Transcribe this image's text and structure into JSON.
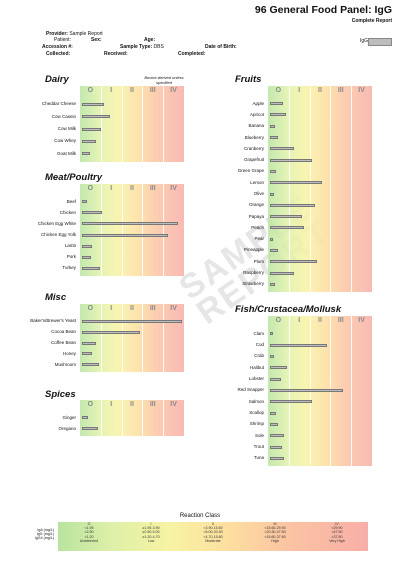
{
  "header": {
    "title": "96 General Food Panel: IgG",
    "subtitle": "Complete Report",
    "provider_label": "Provider:",
    "provider_value": "Sample Report",
    "patient_label": "Patient:",
    "sex_label": "Sex:",
    "age_label": "Age:",
    "accession_label": "Accession #:",
    "sample_type_label": "Sample Type:",
    "sample_type_value": "DBS",
    "dob_label": "Date of Birth:",
    "collected_label": "Collected:",
    "received_label": "Received:",
    "completed_label": "Completed:",
    "legend_label": "IgG"
  },
  "class_headers": [
    "O",
    "I",
    "II",
    "III",
    "IV"
  ],
  "watermark": "SAMPLE REPORT",
  "sections": {
    "dairy": {
      "title": "Dairy",
      "note": "Bovine-derived unless specified",
      "items": [
        {
          "label": "Cheddar Cheese",
          "level": 0.22
        },
        {
          "label": "Cow Casein",
          "level": 0.28
        },
        {
          "label": "Cow Milk",
          "level": 0.19
        },
        {
          "label": "Cow Whey",
          "level": 0.14
        },
        {
          "label": "Goat Milk",
          "level": 0.08
        }
      ]
    },
    "meat": {
      "title": "Meat/Poultry",
      "items": [
        {
          "label": "Beef",
          "level": 0.05
        },
        {
          "label": "Chicken",
          "level": 0.2
        },
        {
          "label": "Chicken Egg White",
          "level": 0.96
        },
        {
          "label": "Chicken Egg Yolk",
          "level": 0.86
        },
        {
          "label": "Lamb",
          "level": 0.1
        },
        {
          "label": "Pork",
          "level": 0.09
        },
        {
          "label": "Turkey",
          "level": 0.18
        }
      ]
    },
    "misc": {
      "title": "Misc",
      "items": [
        {
          "label": "Baker's/Brewer's Yeast",
          "level": 1.0
        },
        {
          "label": "Cocoa Bean",
          "level": 0.58
        },
        {
          "label": "Coffee Bean",
          "level": 0.14
        },
        {
          "label": "Honey",
          "level": 0.1
        },
        {
          "label": "Mushroom",
          "level": 0.17
        }
      ]
    },
    "spices": {
      "title": "Spices",
      "items": [
        {
          "label": "Ginger",
          "level": 0.06
        },
        {
          "label": "Oregano",
          "level": 0.16
        }
      ]
    },
    "fruits": {
      "title": "Fruits",
      "items": [
        {
          "label": "Apple",
          "level": 0.13
        },
        {
          "label": "Apricot",
          "level": 0.16
        },
        {
          "label": "Banana",
          "level": 0.05
        },
        {
          "label": "Blueberry",
          "level": 0.08
        },
        {
          "label": "Cranberry",
          "level": 0.24
        },
        {
          "label": "Grapefruit",
          "level": 0.42
        },
        {
          "label": "Green Grape",
          "level": 0.06
        },
        {
          "label": "Lemon",
          "level": 0.52
        },
        {
          "label": "Olive",
          "level": 0.04
        },
        {
          "label": "Orange",
          "level": 0.45
        },
        {
          "label": "Papaya",
          "level": 0.32
        },
        {
          "label": "Peach",
          "level": 0.34
        },
        {
          "label": "Pear",
          "level": 0.03
        },
        {
          "label": "Pineapple",
          "level": 0.08
        },
        {
          "label": "Plum",
          "level": 0.47
        },
        {
          "label": "Raspberry",
          "level": 0.24
        },
        {
          "label": "Strawberry",
          "level": 0.05
        }
      ]
    },
    "fish": {
      "title": "Fish/Crustacea/Mollusk",
      "items": [
        {
          "label": "Clam",
          "level": 0.03
        },
        {
          "label": "Cod",
          "level": 0.57
        },
        {
          "label": "Crab",
          "level": 0.04
        },
        {
          "label": "Halibut",
          "level": 0.17
        },
        {
          "label": "Lobster",
          "level": 0.11
        },
        {
          "label": "Red Snapper",
          "level": 0.73
        },
        {
          "label": "Salmon",
          "level": 0.42
        },
        {
          "label": "Scallop",
          "level": 0.06
        },
        {
          "label": "Shrimp",
          "level": 0.08
        },
        {
          "label": "Sole",
          "level": 0.14
        },
        {
          "label": "Trout",
          "level": 0.12
        },
        {
          "label": "Tuna",
          "level": 0.14
        }
      ]
    }
  },
  "reaction_class": {
    "title": "Reaction Class",
    "row_labels": [
      "IgA  (mg/L)",
      "IgG  (mg/L)",
      "IgG4 (mg/L)"
    ],
    "columns": [
      {
        "class": "O",
        "lines": [
          "<1.95",
          "<2.50",
          "<1.20",
          "Undetected"
        ]
      },
      {
        "class": "I",
        "lines": [
          "≥1.95-3.90",
          "≥2.50-5.00",
          "≥1.20-4.70",
          "Low"
        ]
      },
      {
        "class": "II",
        "lines": [
          "<3.90-15.60",
          "<5.00-20.30",
          "<4.70-15.60",
          "Moderate"
        ]
      },
      {
        "class": "III",
        "lines": [
          "<15.60-29.90",
          "<20.30-47.50",
          "<15.60-37.60",
          "High"
        ]
      },
      {
        "class": "IV",
        "lines": [
          "<29.90",
          "<47.50",
          "<37.60",
          "Very High"
        ]
      }
    ]
  }
}
